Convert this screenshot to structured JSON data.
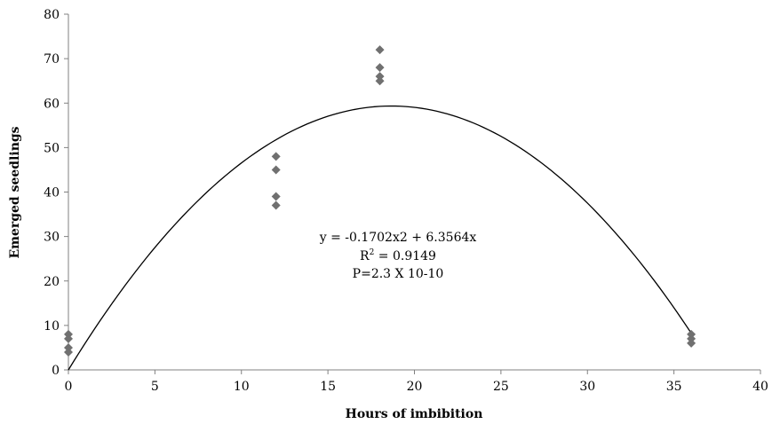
{
  "chart_data": {
    "type": "scatter",
    "title": "",
    "xlabel": "Hours of imbibition",
    "ylabel": "Emerged seedlings",
    "xlim": [
      0,
      40
    ],
    "ylim": [
      0,
      80
    ],
    "xticks": [
      "0",
      "5",
      "10",
      "15",
      "20",
      "25",
      "30",
      "35",
      "40"
    ],
    "yticks": [
      "0",
      "10",
      "20",
      "30",
      "40",
      "50",
      "60",
      "70",
      "80"
    ],
    "grid": false,
    "legend": "none",
    "series": [
      {
        "marker": "diamond",
        "color": "#707070",
        "points": [
          {
            "x": 0,
            "y": 8
          },
          {
            "x": 0,
            "y": 7
          },
          {
            "x": 0,
            "y": 5
          },
          {
            "x": 0,
            "y": 4
          },
          {
            "x": 12,
            "y": 48
          },
          {
            "x": 12,
            "y": 45
          },
          {
            "x": 12,
            "y": 39
          },
          {
            "x": 12,
            "y": 37
          },
          {
            "x": 18,
            "y": 72
          },
          {
            "x": 18,
            "y": 68
          },
          {
            "x": 18,
            "y": 66
          },
          {
            "x": 18,
            "y": 65
          },
          {
            "x": 36,
            "y": 8
          },
          {
            "x": 36,
            "y": 7
          },
          {
            "x": 36,
            "y": 6
          }
        ]
      }
    ],
    "trendline": {
      "type": "polynomial",
      "a": -0.1702,
      "b": 6.3564,
      "c": 0,
      "x_range": [
        0,
        36
      ],
      "color": "#000000"
    },
    "annotations": {
      "equation": "y = -0.1702x2 + 6.3564x",
      "r2_label": "R",
      "r2_sup": "2",
      "r2_value": " = 0.9149",
      "p_value": "P=2.3 X 10-10"
    }
  }
}
